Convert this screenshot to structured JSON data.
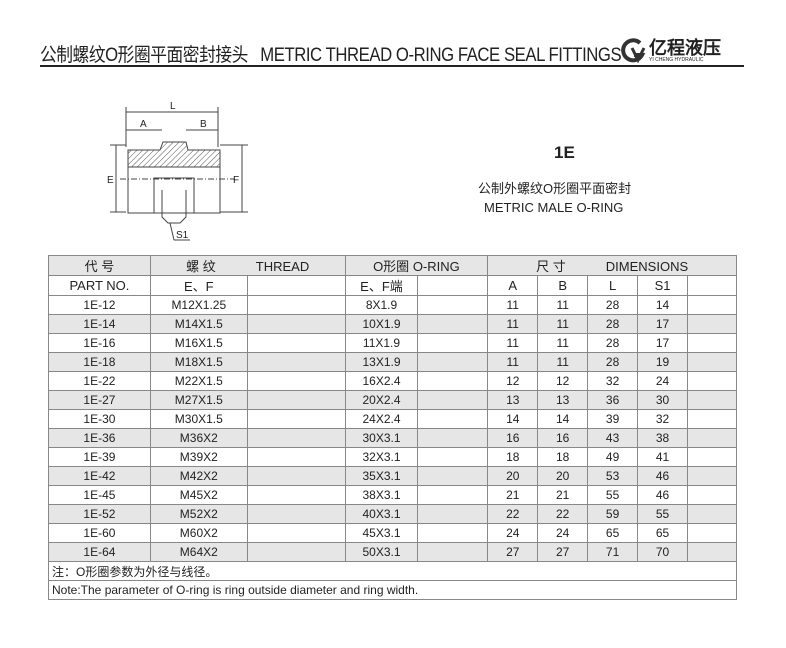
{
  "header": {
    "title_cn": "公制螺纹O形圈平面密封接头",
    "title_en": "METRIC THREAD O-RING FACE SEAL FITTINGS"
  },
  "logo": {
    "name_cn": "亿程液压",
    "name_en": "YI CHENG HYDRAULIC"
  },
  "product": {
    "code": "1E",
    "desc_cn": "公制外螺纹O形圈平面密封",
    "desc_en": "METRIC MALE O-RING"
  },
  "drawing": {
    "labels": [
      "L",
      "A",
      "B",
      "E",
      "F",
      "S1"
    ]
  },
  "table": {
    "group_headers": {
      "part_cn": "代  号",
      "thread_cn": "螺  纹",
      "thread_en": "THREAD",
      "oring_cn": "O形圈",
      "oring_en": "O-RING",
      "dim_cn": "尺  寸",
      "dim_en": "DIMENSIONS"
    },
    "sub_headers": {
      "part": "PART NO.",
      "thread": "E、F",
      "oring": "E、F端",
      "a": "A",
      "b": "B",
      "l": "L",
      "s1": "S1"
    },
    "rows": [
      [
        "1E-12",
        "M12X1.25",
        "8X1.9",
        "11",
        "11",
        "28",
        "14"
      ],
      [
        "1E-14",
        "M14X1.5",
        "10X1.9",
        "11",
        "11",
        "28",
        "17"
      ],
      [
        "1E-16",
        "M16X1.5",
        "11X1.9",
        "11",
        "11",
        "28",
        "17"
      ],
      [
        "1E-18",
        "M18X1.5",
        "13X1.9",
        "11",
        "11",
        "28",
        "19"
      ],
      [
        "1E-22",
        "M22X1.5",
        "16X2.4",
        "12",
        "12",
        "32",
        "24"
      ],
      [
        "1E-27",
        "M27X1.5",
        "20X2.4",
        "13",
        "13",
        "36",
        "30"
      ],
      [
        "1E-30",
        "M30X1.5",
        "24X2.4",
        "14",
        "14",
        "39",
        "32"
      ],
      [
        "1E-36",
        "M36X2",
        "30X3.1",
        "16",
        "16",
        "43",
        "38"
      ],
      [
        "1E-39",
        "M39X2",
        "32X3.1",
        "18",
        "18",
        "49",
        "41"
      ],
      [
        "1E-42",
        "M42X2",
        "35X3.1",
        "20",
        "20",
        "53",
        "46"
      ],
      [
        "1E-45",
        "M45X2",
        "38X3.1",
        "21",
        "21",
        "55",
        "46"
      ],
      [
        "1E-52",
        "M52X2",
        "40X3.1",
        "22",
        "22",
        "59",
        "55"
      ],
      [
        "1E-60",
        "M60X2",
        "45X3.1",
        "24",
        "24",
        "65",
        "65"
      ],
      [
        "1E-64",
        "M64X2",
        "50X3.1",
        "27",
        "27",
        "71",
        "70"
      ]
    ],
    "note_cn": "注：O形圈参数为外径与线径。",
    "note_en": "Note:The parameter of O-ring is ring outside diameter and ring width."
  }
}
